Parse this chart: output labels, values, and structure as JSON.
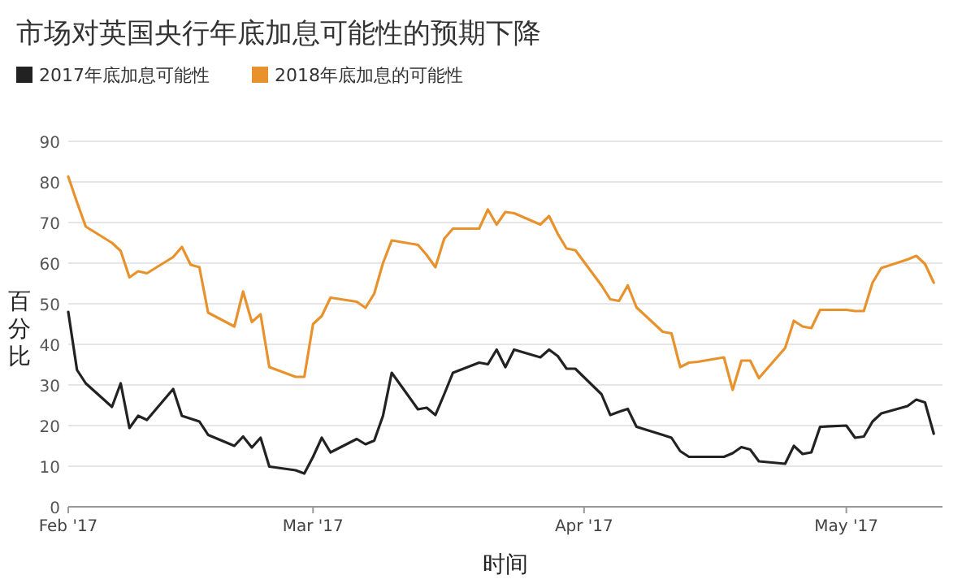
{
  "chart_data": {
    "type": "line",
    "title": "市场对英国央行年底加息可能性的预期下降",
    "xlabel": "时间",
    "ylabel": "百分比",
    "x": [
      "2017-02-01",
      "2017-02-02",
      "2017-02-03",
      "2017-02-06",
      "2017-02-07",
      "2017-02-08",
      "2017-02-09",
      "2017-02-10",
      "2017-02-13",
      "2017-02-14",
      "2017-02-15",
      "2017-02-16",
      "2017-02-17",
      "2017-02-20",
      "2017-02-21",
      "2017-02-22",
      "2017-02-23",
      "2017-02-24",
      "2017-02-27",
      "2017-02-28",
      "2017-03-01",
      "2017-03-02",
      "2017-03-03",
      "2017-03-06",
      "2017-03-07",
      "2017-03-08",
      "2017-03-09",
      "2017-03-10",
      "2017-03-13",
      "2017-03-14",
      "2017-03-15",
      "2017-03-16",
      "2017-03-17",
      "2017-03-20",
      "2017-03-21",
      "2017-03-22",
      "2017-03-23",
      "2017-03-24",
      "2017-03-27",
      "2017-03-28",
      "2017-03-29",
      "2017-03-30",
      "2017-03-31",
      "2017-04-03",
      "2017-04-04",
      "2017-04-05",
      "2017-04-06",
      "2017-04-07",
      "2017-04-10",
      "2017-04-11",
      "2017-04-12",
      "2017-04-13",
      "2017-04-14",
      "2017-04-17",
      "2017-04-18",
      "2017-04-19",
      "2017-04-20",
      "2017-04-21",
      "2017-04-24",
      "2017-04-25",
      "2017-04-26",
      "2017-04-27",
      "2017-04-28",
      "2017-05-01",
      "2017-05-02",
      "2017-05-03",
      "2017-05-04",
      "2017-05-05",
      "2017-05-08",
      "2017-05-09",
      "2017-05-10",
      "2017-05-11"
    ],
    "series": [
      {
        "name": "2017年底加息可能性",
        "color": "#222222",
        "values": [
          48,
          33.7,
          30.4,
          24.6,
          30.4,
          19.4,
          22.4,
          21.4,
          29,
          22.4,
          21.7,
          21,
          17.7,
          15,
          17.3,
          14.6,
          17,
          9.9,
          9,
          8.2,
          12.3,
          17,
          13.4,
          16.7,
          15.4,
          16.3,
          22.4,
          33,
          24,
          24.4,
          22.6,
          27.7,
          33,
          35.5,
          35.1,
          38.7,
          34.4,
          38.7,
          36.8,
          38.7,
          37.1,
          34,
          34,
          27.7,
          22.6,
          23.4,
          24.1,
          19.7,
          17.7,
          17,
          13.7,
          12.3,
          12.3,
          12.3,
          13.2,
          14.7,
          14.1,
          11.2,
          10.6,
          15,
          13,
          13.4,
          19.7,
          20,
          17,
          17.3,
          21,
          23,
          24.8,
          26.4,
          25.7,
          18
        ]
      },
      {
        "name": "2018年底加息的可能性",
        "color": "#e8922e",
        "values": [
          81.3,
          75,
          69,
          65,
          63,
          56.5,
          58,
          57.5,
          61.5,
          64,
          59.6,
          59,
          47.8,
          44.4,
          53,
          45.5,
          47.4,
          34.4,
          32,
          32,
          45,
          47,
          51.5,
          50.5,
          49,
          52.5,
          60,
          65.6,
          64.5,
          62,
          59,
          66,
          68.5,
          68.5,
          73.2,
          69.5,
          72.6,
          72.3,
          69.5,
          71.6,
          67.2,
          63.6,
          63.2,
          54.5,
          51.1,
          50.7,
          54.5,
          49.1,
          43.1,
          42.7,
          34.4,
          35.5,
          35.7,
          36.8,
          28.8,
          36,
          36,
          31.7,
          39.1,
          45.8,
          44.4,
          44,
          48.5,
          48.5,
          48.2,
          48.2,
          55.2,
          58.8,
          60.9,
          61.8,
          59.8,
          55.2
        ]
      }
    ],
    "xlim": [
      "2017-02-01",
      "2017-05-12"
    ],
    "xticks": [
      {
        "value": "2017-02-01",
        "label": "Feb '17"
      },
      {
        "value": "2017-03-01",
        "label": "Mar '17"
      },
      {
        "value": "2017-04-01",
        "label": "Apr '17"
      },
      {
        "value": "2017-05-01",
        "label": "May '17"
      }
    ],
    "ylim": [
      0,
      90
    ],
    "yticks": [
      0,
      10,
      20,
      30,
      40,
      50,
      60,
      70,
      80,
      90
    ],
    "grid": "y",
    "legend": "top left",
    "line_style": "solid"
  }
}
